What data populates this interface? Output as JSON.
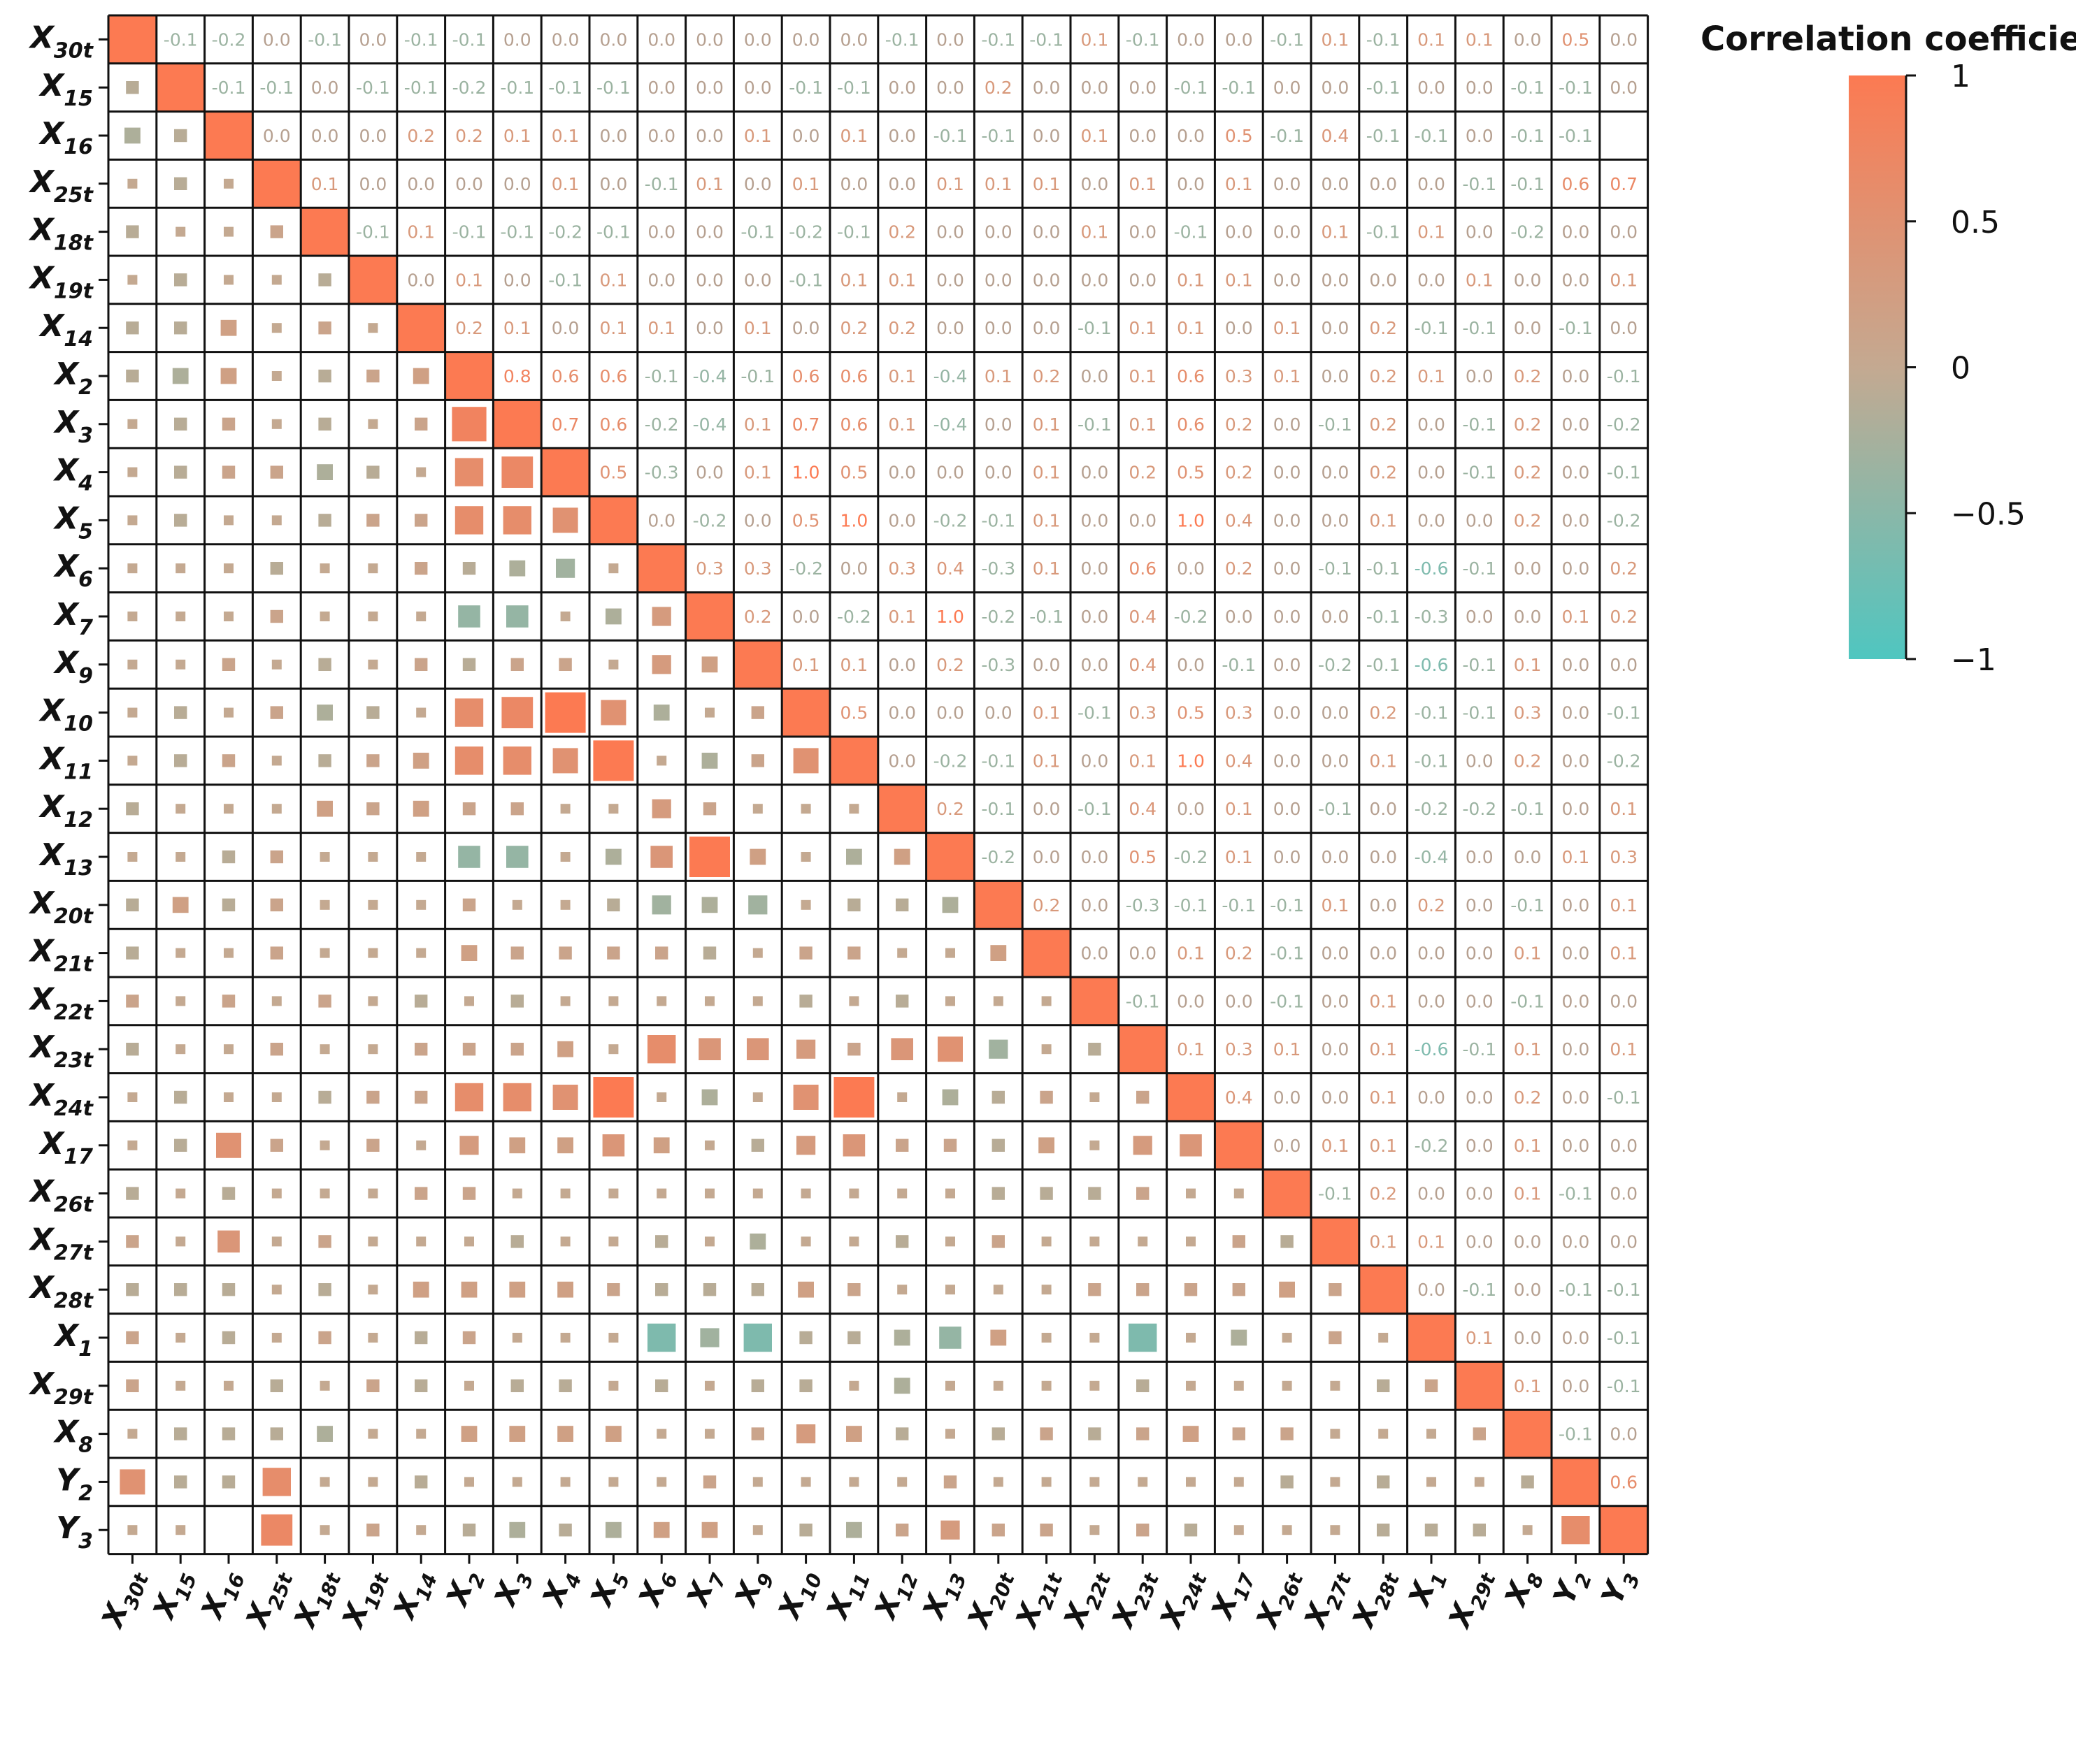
{
  "chart_data": {
    "type": "heatmap",
    "title": "",
    "variables": [
      {
        "base": "X",
        "sub": "30t"
      },
      {
        "base": "X",
        "sub": "15"
      },
      {
        "base": "X",
        "sub": "16"
      },
      {
        "base": "X",
        "sub": "25t"
      },
      {
        "base": "X",
        "sub": "18t"
      },
      {
        "base": "X",
        "sub": "19t"
      },
      {
        "base": "X",
        "sub": "14"
      },
      {
        "base": "X",
        "sub": "2"
      },
      {
        "base": "X",
        "sub": "3"
      },
      {
        "base": "X",
        "sub": "4"
      },
      {
        "base": "X",
        "sub": "5"
      },
      {
        "base": "X",
        "sub": "6"
      },
      {
        "base": "X",
        "sub": "7"
      },
      {
        "base": "X",
        "sub": "9"
      },
      {
        "base": "X",
        "sub": "10"
      },
      {
        "base": "X",
        "sub": "11"
      },
      {
        "base": "X",
        "sub": "12"
      },
      {
        "base": "X",
        "sub": "13"
      },
      {
        "base": "X",
        "sub": "20t"
      },
      {
        "base": "X",
        "sub": "21t"
      },
      {
        "base": "X",
        "sub": "22t"
      },
      {
        "base": "X",
        "sub": "23t"
      },
      {
        "base": "X",
        "sub": "24t"
      },
      {
        "base": "X",
        "sub": "17"
      },
      {
        "base": "X",
        "sub": "26t"
      },
      {
        "base": "X",
        "sub": "27t"
      },
      {
        "base": "X",
        "sub": "28t"
      },
      {
        "base": "X",
        "sub": "1"
      },
      {
        "base": "X",
        "sub": "29t"
      },
      {
        "base": "X",
        "sub": "8"
      },
      {
        "base": "Y",
        "sub": "2"
      },
      {
        "base": "Y",
        "sub": "3"
      }
    ],
    "upper_triangle_rows": [
      [
        "-0.1",
        "-0.2",
        "0.0",
        "-0.1",
        "0.0",
        "-0.1",
        "-0.1",
        "0.0",
        "0.0",
        "0.0",
        "0.0",
        "0.0",
        "0.0",
        "0.0",
        "0.0",
        "-0.1",
        "0.0",
        "-0.1",
        "-0.1",
        "0.1",
        "-0.1",
        "0.0",
        "0.0",
        "-0.1",
        "0.1",
        "-0.1",
        "0.1",
        "0.1",
        "0.0",
        "0.5",
        "0.0"
      ],
      [
        "-0.1",
        "-0.1",
        "0.0",
        "-0.1",
        "-0.1",
        "-0.2",
        "-0.1",
        "-0.1",
        "-0.1",
        "0.0",
        "0.0",
        "0.0",
        "-0.1",
        "-0.1",
        "0.0",
        "0.0",
        "0.2",
        "0.0",
        "0.0",
        "0.0",
        "-0.1",
        "-0.1",
        "0.0",
        "0.0",
        "-0.1",
        "0.0",
        "0.0",
        "-0.1",
        "-0.1",
        "0.0"
      ],
      [
        "0.0",
        "0.0",
        "0.0",
        "0.2",
        "0.2",
        "0.1",
        "0.1",
        "0.0",
        "0.0",
        "0.0",
        "0.1",
        "0.0",
        "0.1",
        "0.0",
        "-0.1",
        "-0.1",
        "0.0",
        "0.1",
        "0.0",
        "0.0",
        "0.5",
        "-0.1",
        "0.4",
        "-0.1",
        "-0.1",
        "0.0",
        "-0.1",
        "-0.1"
      ],
      [
        "0.1",
        "0.0",
        "0.0",
        "0.0",
        "0.0",
        "0.1",
        "0.0",
        "-0.1",
        "0.1",
        "0.0",
        "0.1",
        "0.0",
        "0.0",
        "0.1",
        "0.1",
        "0.1",
        "0.0",
        "0.1",
        "0.0",
        "0.1",
        "0.0",
        "0.0",
        "0.0",
        "0.0",
        "-0.1",
        "-0.1",
        "0.6",
        "0.7"
      ],
      [
        "-0.1",
        "0.1",
        "-0.1",
        "-0.1",
        "-0.2",
        "-0.1",
        "0.0",
        "0.0",
        "-0.1",
        "-0.2",
        "-0.1",
        "0.2",
        "0.0",
        "0.0",
        "0.0",
        "0.1",
        "0.0",
        "-0.1",
        "0.0",
        "0.0",
        "0.1",
        "-0.1",
        "0.1",
        "0.0",
        "-0.2",
        "0.0",
        "0.0"
      ],
      [
        "0.0",
        "0.1",
        "0.0",
        "-0.1",
        "0.1",
        "0.0",
        "0.0",
        "0.0",
        "-0.1",
        "0.1",
        "0.1",
        "0.0",
        "0.0",
        "0.0",
        "0.0",
        "0.0",
        "0.1",
        "0.1",
        "0.0",
        "0.0",
        "0.0",
        "0.0",
        "0.1",
        "0.0",
        "0.0",
        "0.1"
      ],
      [
        "0.2",
        "0.1",
        "0.0",
        "0.1",
        "0.1",
        "0.0",
        "0.1",
        "0.0",
        "0.2",
        "0.2",
        "0.0",
        "0.0",
        "0.0",
        "-0.1",
        "0.1",
        "0.1",
        "0.0",
        "0.1",
        "0.0",
        "0.2",
        "-0.1",
        "-0.1",
        "0.0",
        "-0.1",
        "0.0"
      ],
      [
        "0.8",
        "0.6",
        "0.6",
        "-0.1",
        "-0.4",
        "-0.1",
        "0.6",
        "0.6",
        "0.1",
        "-0.4",
        "0.1",
        "0.2",
        "0.0",
        "0.1",
        "0.6",
        "0.3",
        "0.1",
        "0.0",
        "0.2",
        "0.1",
        "0.0",
        "0.2",
        "0.0",
        "-0.1"
      ],
      [
        "0.7",
        "0.6",
        "-0.2",
        "-0.4",
        "0.1",
        "0.7",
        "0.6",
        "0.1",
        "-0.4",
        "0.0",
        "0.1",
        "-0.1",
        "0.1",
        "0.6",
        "0.2",
        "0.0",
        "-0.1",
        "0.2",
        "0.0",
        "-0.1",
        "0.2",
        "0.0",
        "-0.2"
      ],
      [
        "0.5",
        "-0.3",
        "0.0",
        "0.1",
        "1.0",
        "0.5",
        "0.0",
        "0.0",
        "0.0",
        "0.1",
        "0.0",
        "0.2",
        "0.5",
        "0.2",
        "0.0",
        "0.0",
        "0.2",
        "0.0",
        "-0.1",
        "0.2",
        "0.0",
        "-0.1"
      ],
      [
        "0.0",
        "-0.2",
        "0.0",
        "0.5",
        "1.0",
        "0.0",
        "-0.2",
        "-0.1",
        "0.1",
        "0.0",
        "0.0",
        "1.0",
        "0.4",
        "0.0",
        "0.0",
        "0.1",
        "0.0",
        "0.0",
        "0.2",
        "0.0",
        "-0.2"
      ],
      [
        "0.3",
        "0.3",
        "-0.2",
        "0.0",
        "0.3",
        "0.4",
        "-0.3",
        "0.1",
        "0.0",
        "0.6",
        "0.0",
        "0.2",
        "0.0",
        "-0.1",
        "-0.1",
        "-0.6",
        "-0.1",
        "0.0",
        "0.0",
        "0.2"
      ],
      [
        "0.2",
        "0.0",
        "-0.2",
        "0.1",
        "1.0",
        "-0.2",
        "-0.1",
        "0.0",
        "0.4",
        "-0.2",
        "0.0",
        "0.0",
        "0.0",
        "-0.1",
        "-0.3",
        "0.0",
        "0.0",
        "0.1",
        "0.2"
      ],
      [
        "0.1",
        "0.1",
        "0.0",
        "0.2",
        "-0.3",
        "0.0",
        "0.0",
        "0.4",
        "0.0",
        "-0.1",
        "0.0",
        "-0.2",
        "-0.1",
        "-0.6",
        "-0.1",
        "0.1",
        "0.0",
        "0.0"
      ],
      [
        "0.5",
        "0.0",
        "0.0",
        "0.0",
        "0.1",
        "-0.1",
        "0.3",
        "0.5",
        "0.3",
        "0.0",
        "0.0",
        "0.2",
        "-0.1",
        "-0.1",
        "0.3",
        "0.0",
        "-0.1"
      ],
      [
        "0.0",
        "-0.2",
        "-0.1",
        "0.1",
        "0.0",
        "0.1",
        "1.0",
        "0.4",
        "0.0",
        "0.0",
        "0.1",
        "-0.1",
        "0.0",
        "0.2",
        "0.0",
        "-0.2"
      ],
      [
        "0.2",
        "-0.1",
        "0.0",
        "-0.1",
        "0.4",
        "0.0",
        "0.1",
        "0.0",
        "-0.1",
        "0.0",
        "-0.2",
        "-0.2",
        "-0.1",
        "0.0",
        "0.1"
      ],
      [
        "-0.2",
        "0.0",
        "0.0",
        "0.5",
        "-0.2",
        "0.1",
        "0.0",
        "0.0",
        "0.0",
        "-0.4",
        "0.0",
        "0.0",
        "0.1",
        "0.3"
      ],
      [
        "0.2",
        "0.0",
        "-0.3",
        "-0.1",
        "-0.1",
        "-0.1",
        "0.1",
        "0.0",
        "0.2",
        "0.0",
        "-0.1",
        "0.0",
        "0.1"
      ],
      [
        "0.0",
        "0.0",
        "0.1",
        "0.2",
        "-0.1",
        "0.0",
        "0.0",
        "0.0",
        "0.0",
        "0.1",
        "0.0",
        "0.1"
      ],
      [
        "-0.1",
        "0.0",
        "0.0",
        "-0.1",
        "0.0",
        "0.1",
        "0.0",
        "0.0",
        "-0.1",
        "0.0",
        "0.0"
      ],
      [
        "0.1",
        "0.3",
        "0.1",
        "0.0",
        "0.1",
        "-0.6",
        "-0.1",
        "0.1",
        "0.0",
        "0.1"
      ],
      [
        "0.4",
        "0.0",
        "0.0",
        "0.1",
        "0.0",
        "0.0",
        "0.2",
        "0.0",
        "-0.1"
      ],
      [
        "0.0",
        "0.1",
        "0.1",
        "-0.2",
        "0.0",
        "0.1",
        "0.0",
        "0.0"
      ],
      [
        "-0.1",
        "0.2",
        "0.0",
        "0.0",
        "0.1",
        "-0.1",
        "0.0"
      ],
      [
        "0.1",
        "0.1",
        "0.0",
        "0.0",
        "0.0",
        "0.0"
      ],
      [
        "0.0",
        "-0.1",
        "0.0",
        "-0.1",
        "-0.1"
      ],
      [
        "0.1",
        "0.0",
        "0.0",
        "-0.1"
      ],
      [
        "0.1",
        "0.0",
        "-0.1"
      ],
      [
        "-0.1",
        "0.0"
      ],
      [
        "0.6"
      ],
      []
    ],
    "diagonal_value": 1,
    "value_range": [
      -1,
      1
    ],
    "colormap": {
      "low": "#4fc6c0",
      "mid": "#c4a991",
      "high": "#fc7a52"
    },
    "colorbar": {
      "title": "Correlation coefficient",
      "ticks": [
        1,
        0.5,
        0,
        -0.5,
        -1
      ],
      "tick_labels": [
        "1",
        "0.5",
        "0",
        "−0.5",
        "−1"
      ],
      "placement": "right"
    }
  }
}
